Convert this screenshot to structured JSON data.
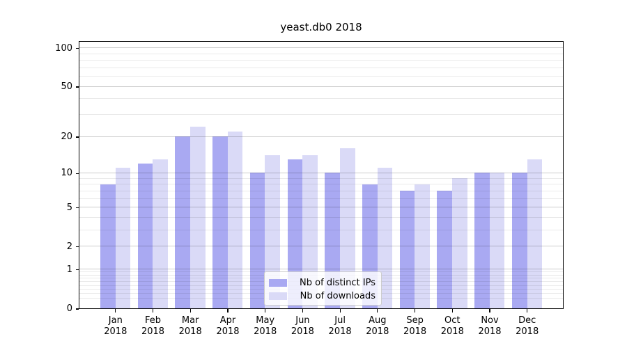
{
  "chart_data": {
    "type": "bar",
    "title": "yeast.db0 2018",
    "categories": [
      "Jan",
      "Feb",
      "Mar",
      "Apr",
      "May",
      "Jun",
      "Jul",
      "Aug",
      "Sep",
      "Oct",
      "Nov",
      "Dec"
    ],
    "year_label": "2018",
    "series": [
      {
        "name": "Nb of distinct IPs",
        "color": "#a9a9f2",
        "values": [
          8,
          12,
          20,
          20,
          10,
          13,
          10,
          8,
          7,
          7,
          10,
          10
        ]
      },
      {
        "name": "Nb of downloads",
        "color": "#dadaf7",
        "values": [
          11,
          13,
          24,
          22,
          14,
          14,
          16,
          11,
          8,
          9,
          10,
          13
        ]
      }
    ],
    "y_scale": "log10(1+y)",
    "y_ticks": [
      0,
      1,
      2,
      5,
      10,
      20,
      50,
      100
    ],
    "y_minor_ticks": [
      0.2,
      0.3,
      0.4,
      0.5,
      0.6,
      0.7,
      0.8,
      0.9,
      3,
      4,
      6,
      7,
      8,
      9,
      30,
      40,
      60,
      70,
      80,
      90
    ],
    "ylim": [
      0,
      114
    ],
    "grid": true,
    "legend_position": "lower center",
    "colors": {
      "axis": "#000000",
      "grid_major": "#cccccc",
      "grid_minor": "#eaeaea",
      "legend_border": "#cccccc",
      "background": "#ffffff"
    }
  }
}
